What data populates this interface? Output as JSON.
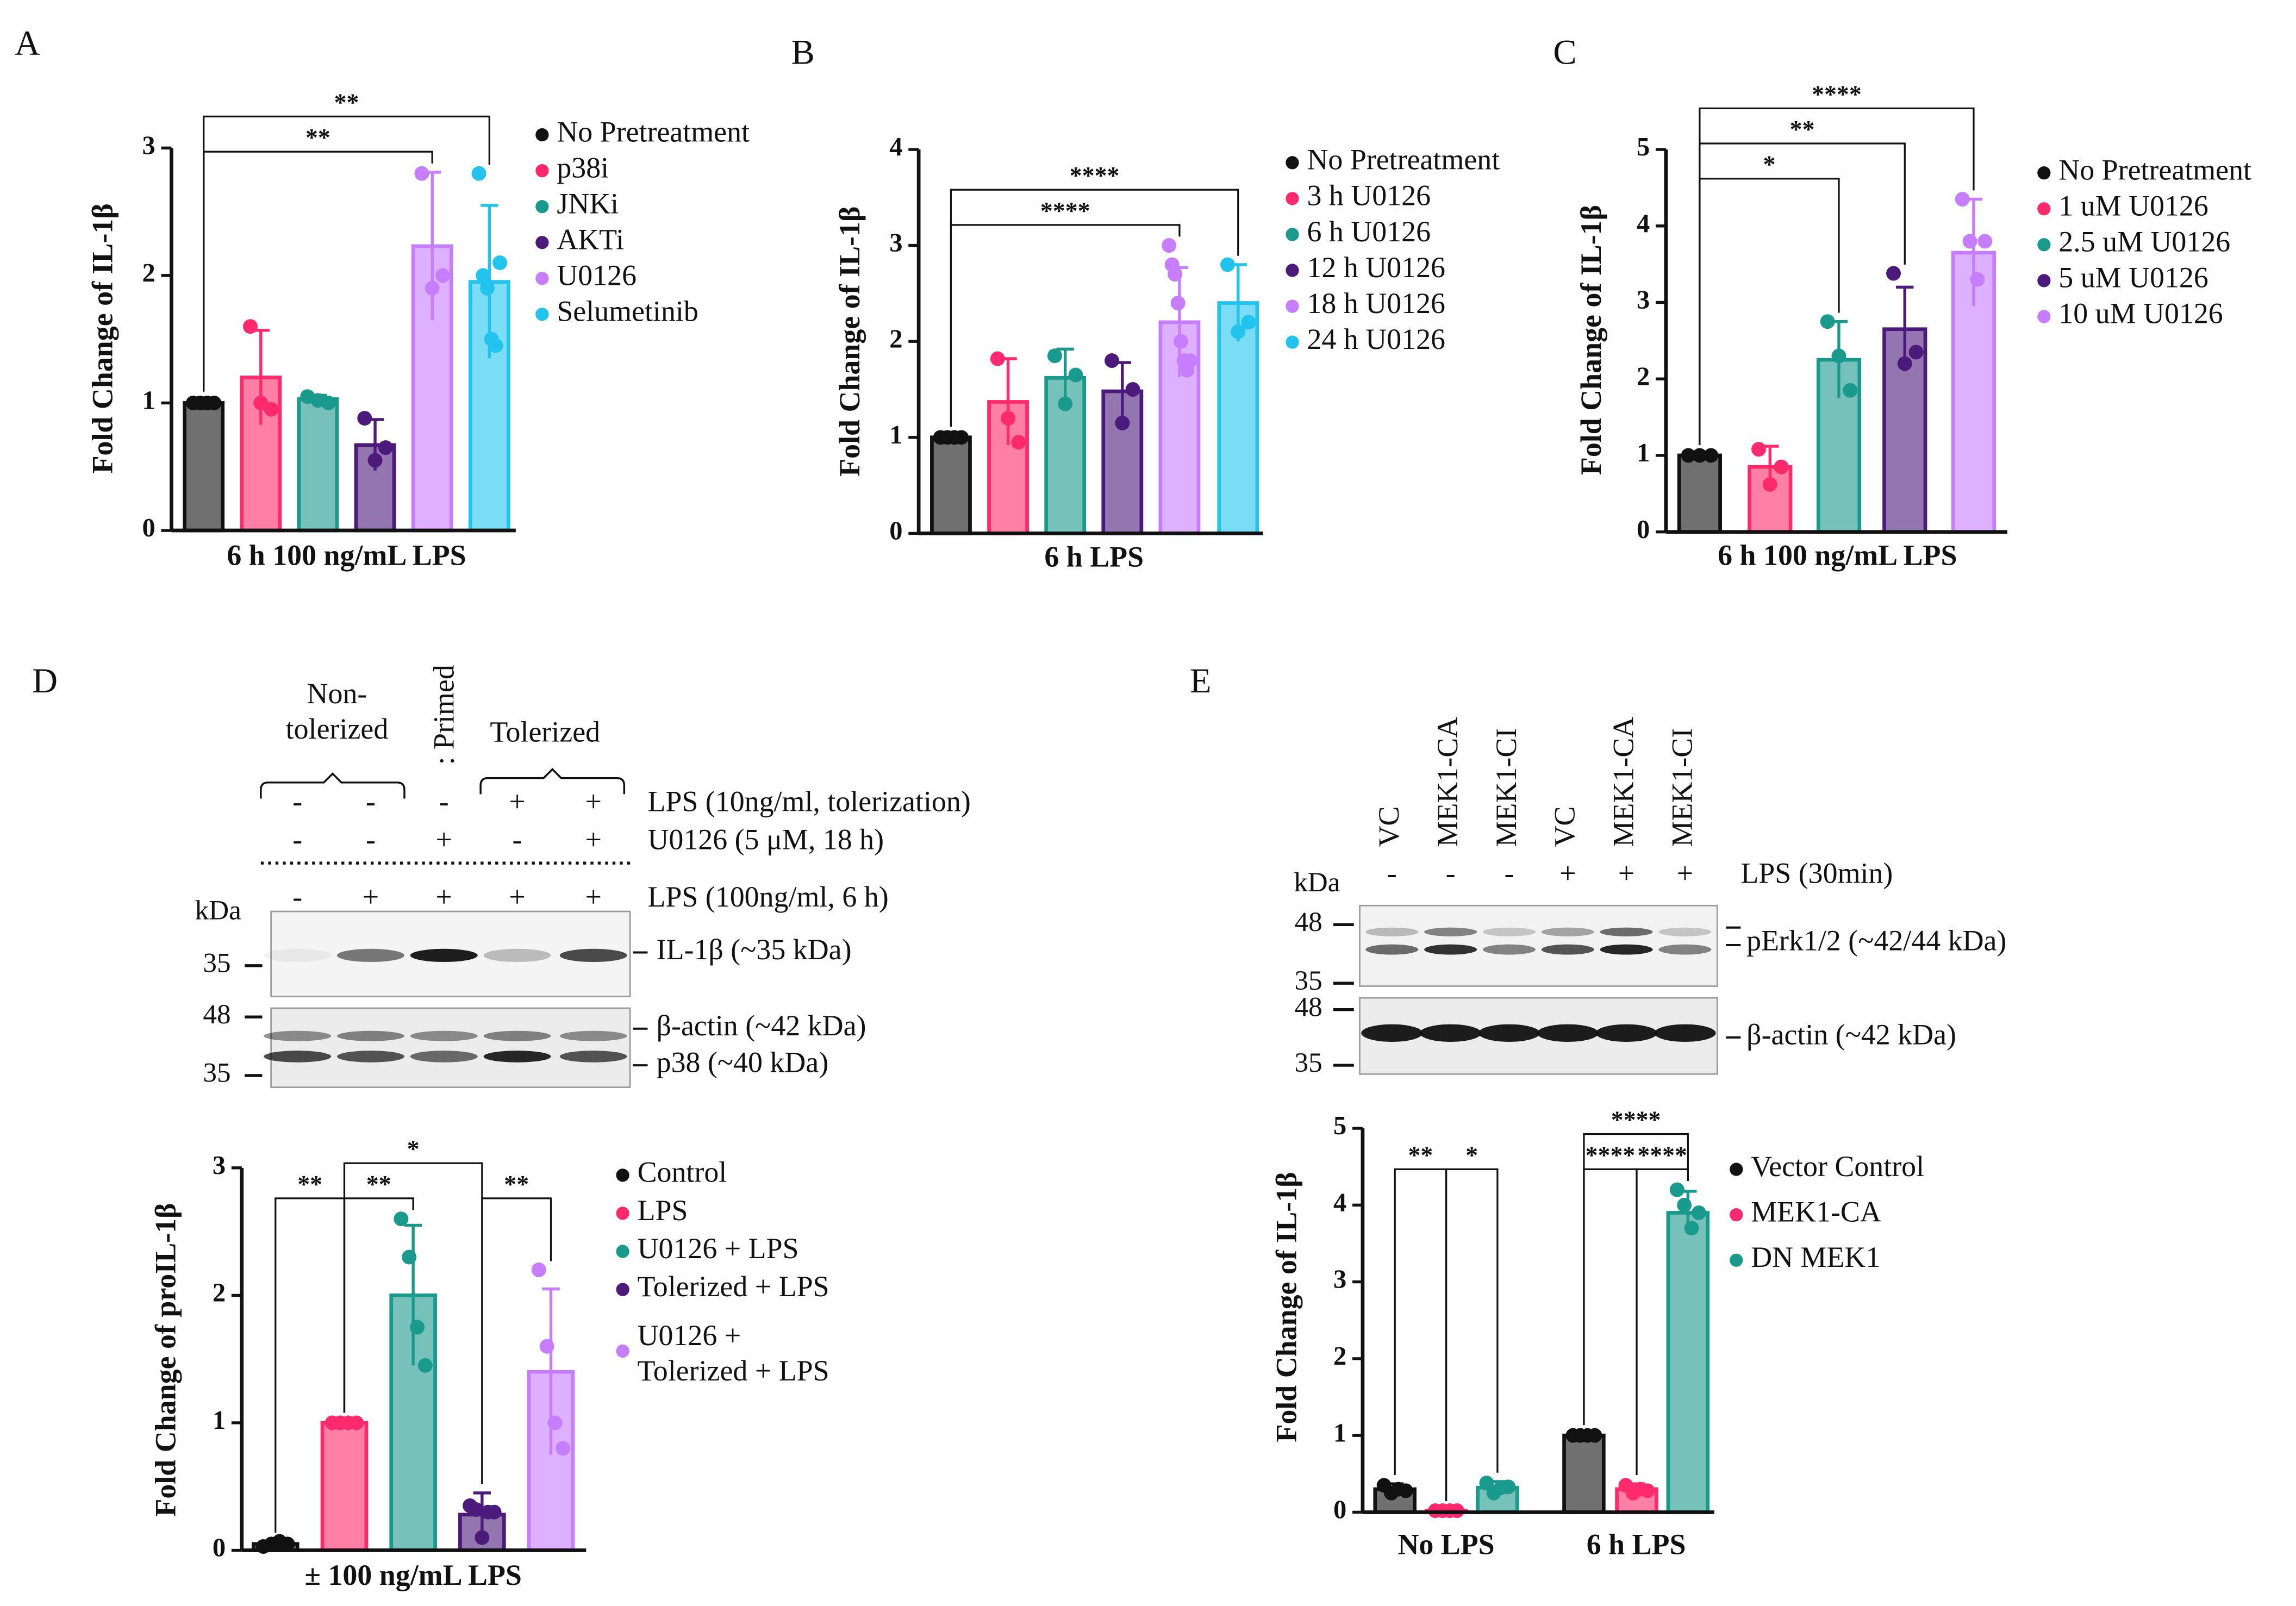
{
  "chart_data": [
    {
      "type": "bar",
      "panel": "A",
      "ylabel": "Fold Change of IL-1β",
      "categories": [
        "6 h 100 ng/mL LPS"
      ],
      "ylim": [
        0,
        3
      ],
      "yticks": [
        0,
        1,
        2,
        3
      ],
      "series": [
        {
          "name": "No Pretreatment",
          "color": "#111111",
          "values": [
            1.0
          ],
          "errors": [
            0.02
          ],
          "points": [
            [
              1.0,
              1.0,
              1.0,
              1.0
            ]
          ]
        },
        {
          "name": "p38i",
          "color": "#ff2a6d",
          "values": [
            1.2
          ],
          "errors": [
            0.37
          ],
          "points": [
            [
              1.6,
              1.0,
              0.95
            ]
          ]
        },
        {
          "name": "JNKi",
          "color": "#1a9a8c",
          "values": [
            1.03
          ],
          "errors": [
            0.03
          ],
          "points": [
            [
              1.05,
              1.02,
              1.0
            ]
          ]
        },
        {
          "name": "AKTi",
          "color": "#4b1a7a",
          "values": [
            0.67
          ],
          "errors": [
            0.2
          ],
          "points": [
            [
              0.88,
              0.55,
              0.65
            ]
          ]
        },
        {
          "name": "U0126",
          "color": "#c77dff",
          "values": [
            2.23
          ],
          "errors": [
            0.58
          ],
          "points": [
            [
              2.8,
              1.9,
              2.0
            ]
          ]
        },
        {
          "name": "Selumetinib",
          "color": "#22c4ee",
          "values": [
            1.95
          ],
          "errors": [
            0.6
          ],
          "points": [
            [
              2.8,
              2.0,
              1.9,
              1.5,
              1.45,
              2.1
            ]
          ]
        }
      ],
      "brackets": [
        {
          "label": "**",
          "category": 0,
          "from": 0,
          "to": 4
        },
        {
          "label": "**",
          "category": 0,
          "from": 0,
          "to": 5
        }
      ]
    },
    {
      "type": "bar",
      "panel": "B",
      "ylabel": "Fold Change of IL-1β",
      "categories": [
        "6 h LPS"
      ],
      "ylim": [
        0,
        4
      ],
      "yticks": [
        0,
        1,
        2,
        3,
        4
      ],
      "series": [
        {
          "name": "No Pretreatment",
          "color": "#111111",
          "values": [
            1.0
          ],
          "errors": [
            0.02
          ],
          "points": [
            [
              1.0,
              1.0,
              1.0,
              1.0
            ]
          ]
        },
        {
          "name": "3 h U0126",
          "color": "#ff2a6d",
          "values": [
            1.37
          ],
          "errors": [
            0.45
          ],
          "points": [
            [
              1.82,
              1.2,
              0.95
            ]
          ]
        },
        {
          "name": "6 h U0126",
          "color": "#1a9a8c",
          "values": [
            1.62
          ],
          "errors": [
            0.3
          ],
          "points": [
            [
              1.85,
              1.35,
              1.65
            ]
          ]
        },
        {
          "name": "12 h U0126",
          "color": "#4b1a7a",
          "values": [
            1.48
          ],
          "errors": [
            0.3
          ],
          "points": [
            [
              1.8,
              1.15,
              1.5
            ]
          ]
        },
        {
          "name": "18 h U0126",
          "color": "#c77dff",
          "values": [
            2.2
          ],
          "errors": [
            0.57
          ],
          "points": [
            [
              3.0,
              2.8,
              2.7,
              2.4,
              2.0,
              1.8,
              1.7,
              1.8
            ]
          ]
        },
        {
          "name": "24 h U0126",
          "color": "#22c4ee",
          "values": [
            2.4
          ],
          "errors": [
            0.4
          ],
          "points": [
            [
              2.8,
              2.1,
              2.2
            ]
          ]
        }
      ],
      "brackets": [
        {
          "label": "****",
          "category": 0,
          "from": 0,
          "to": 4
        },
        {
          "label": "****",
          "category": 0,
          "from": 0,
          "to": 5
        }
      ]
    },
    {
      "type": "bar",
      "panel": "C",
      "ylabel": "Fold Change of IL-1β",
      "categories": [
        "6 h 100 ng/mL LPS"
      ],
      "ylim": [
        0,
        5
      ],
      "yticks": [
        0,
        1,
        2,
        3,
        4,
        5
      ],
      "series": [
        {
          "name": "No Pretreatment",
          "color": "#111111",
          "values": [
            1.0
          ],
          "errors": [
            0.02
          ],
          "points": [
            [
              1.0,
              1.0,
              1.0
            ]
          ]
        },
        {
          "name": "1 uM U0126",
          "color": "#ff2a6d",
          "values": [
            0.85
          ],
          "errors": [
            0.27
          ],
          "points": [
            [
              1.08,
              0.62,
              0.85
            ]
          ]
        },
        {
          "name": "2.5 uM U0126",
          "color": "#1a9a8c",
          "values": [
            2.25
          ],
          "errors": [
            0.5
          ],
          "points": [
            [
              2.75,
              2.3,
              1.85
            ]
          ]
        },
        {
          "name": "5 uM U0126",
          "color": "#4b1a7a",
          "values": [
            2.65
          ],
          "errors": [
            0.55
          ],
          "points": [
            [
              3.38,
              2.2,
              2.35
            ]
          ]
        },
        {
          "name": "10 uM U0126",
          "color": "#c77dff",
          "values": [
            3.65
          ],
          "errors": [
            0.7
          ],
          "points": [
            [
              4.35,
              3.8,
              3.3,
              3.8
            ]
          ]
        }
      ],
      "brackets": [
        {
          "label": "*",
          "category": 0,
          "from": 0,
          "to": 2
        },
        {
          "label": "**",
          "category": 0,
          "from": 0,
          "to": 3
        },
        {
          "label": "****",
          "category": 0,
          "from": 0,
          "to": 4
        }
      ]
    },
    {
      "type": "bar",
      "ylabel": "Fold Change of proIL-1β",
      "categories": [
        "± 100 ng/mL LPS"
      ],
      "ylim": [
        0,
        3
      ],
      "yticks": [
        0,
        1,
        2,
        3
      ],
      "series": [
        {
          "name": "Control",
          "color": "#111111",
          "values": [
            0.05
          ],
          "errors": [
            0.02
          ],
          "points": [
            [
              0.03,
              0.05,
              0.07,
              0.05
            ]
          ]
        },
        {
          "name": "LPS",
          "color": "#ff2a6d",
          "values": [
            1.0
          ],
          "errors": [
            0.01
          ],
          "points": [
            [
              1.0,
              1.0,
              1.0,
              1.0
            ]
          ]
        },
        {
          "name": "U0126 + LPS",
          "color": "#1a9a8c",
          "values": [
            2.0
          ],
          "errors": [
            0.55
          ],
          "points": [
            [
              2.6,
              2.3,
              1.75,
              1.45
            ]
          ]
        },
        {
          "name": "Tolerized + LPS",
          "color": "#4b1a7a",
          "values": [
            0.28
          ],
          "errors": [
            0.17
          ],
          "points": [
            [
              0.35,
              0.32,
              0.1,
              0.3,
              0.3
            ]
          ]
        },
        {
          "name": "U0126 +\nTolerized + LPS",
          "color": "#c77dff",
          "values": [
            1.4
          ],
          "errors": [
            0.65
          ],
          "points": [
            [
              2.2,
              1.6,
              1.0,
              0.8
            ]
          ]
        }
      ],
      "brackets": [
        {
          "label": "**",
          "category": 0,
          "from": 0,
          "to": 1
        },
        {
          "label": "**",
          "category": 0,
          "from": 1,
          "to": 2
        },
        {
          "label": "**",
          "category": 0,
          "from": 3,
          "to": 4
        },
        {
          "label": "*",
          "category": 0,
          "from": 1,
          "to": 3
        }
      ]
    },
    {
      "type": "bar",
      "ylabel": "Fold Change of IL-1β",
      "categories": [
        "No LPS",
        "6 h LPS"
      ],
      "ylim": [
        0,
        5
      ],
      "yticks": [
        0,
        1,
        2,
        3,
        4,
        5
      ],
      "series": [
        {
          "name": "Vector Control",
          "color": "#111111",
          "values": [
            0.3,
            1.0
          ],
          "errors": [
            0.07,
            0.02
          ],
          "points": [
            [
              0.35,
              0.25,
              0.3,
              0.28
            ],
            [
              1.0,
              1.0,
              1.0,
              1.0
            ]
          ]
        },
        {
          "name": "MEK1-CA",
          "color": "#ff2a6d",
          "values": [
            0.02,
            0.3
          ],
          "errors": [
            0.01,
            0.07
          ],
          "points": [
            [
              0.02,
              0.02,
              0.02,
              0.02
            ],
            [
              0.35,
              0.25,
              0.3,
              0.28
            ]
          ]
        },
        {
          "name": "DN MEK1",
          "color": "#1a9a8c",
          "values": [
            0.32,
            3.9
          ],
          "errors": [
            0.08,
            0.28
          ],
          "points": [
            [
              0.38,
              0.25,
              0.32,
              0.33
            ],
            [
              4.2,
              4.0,
              3.7,
              3.9
            ]
          ]
        }
      ],
      "brackets": [
        {
          "label": "**",
          "category": 0,
          "from": 0,
          "to": 1
        },
        {
          "label": "*",
          "category": 0,
          "from": 1,
          "to": 2
        },
        {
          "label": "****",
          "category": 1,
          "from": 0,
          "to": 1
        },
        {
          "label": "****",
          "category": 1,
          "from": 1,
          "to": 2
        },
        {
          "label": "****",
          "category": 1,
          "from": 0,
          "to": 2
        }
      ]
    }
  ],
  "blot_D": {
    "panel": "D",
    "groups": [
      "Non-\ntolerized",
      "Tolerized"
    ],
    "primed": ": Primed",
    "rows": [
      {
        "label": "LPS (10ng/ml, tolerization)",
        "signs": [
          "-",
          "-",
          "-",
          "+",
          "+"
        ]
      },
      {
        "label": "U0126 (5 μM, 18 h)",
        "signs": [
          "-",
          "-",
          "+",
          "-",
          "+"
        ]
      },
      {
        "label": "LPS (100ng/ml, 6 h)",
        "signs": [
          "-",
          "+",
          "+",
          "+",
          "+"
        ]
      }
    ],
    "kda": "kDa",
    "markers": [
      "35",
      "48",
      "35"
    ],
    "bands": [
      "IL-1β (~35 kDa)",
      "β-actin (~42 kDa)",
      "p38 (~40 kDa)"
    ]
  },
  "blot_E": {
    "panel": "E",
    "lanes": [
      "VC",
      "MEK1-CA",
      "MEK1-CI",
      "VC",
      "MEK1-CA",
      "MEK1-CI"
    ],
    "condition": {
      "label": "LPS (30min)",
      "signs": [
        "-",
        "-",
        "-",
        "+",
        "+",
        "+"
      ]
    },
    "kda": "kDa",
    "markers": [
      "48",
      "35",
      "48",
      "35"
    ],
    "bands": [
      "pErk1/2 (~42/44 kDa)",
      "β-actin (~42 kDa)"
    ]
  }
}
